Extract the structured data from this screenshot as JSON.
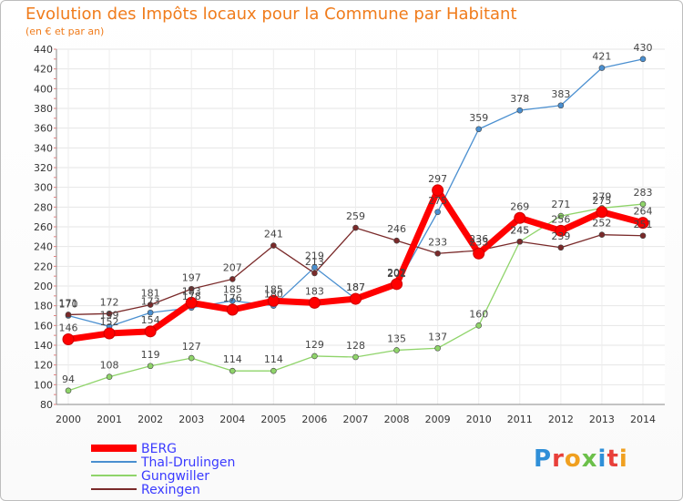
{
  "chart_data": {
    "type": "line",
    "title": "Evolution des Impôts locaux pour la Commune par Habitant",
    "subtitle": "(en € et par an)",
    "x": [
      "2000",
      "2001",
      "2002",
      "2003",
      "2004",
      "2005",
      "2006",
      "2007",
      "2008",
      "2009",
      "2010",
      "2011",
      "2012",
      "2013",
      "2014"
    ],
    "ylim": [
      80,
      440
    ],
    "yticks": [
      80,
      100,
      120,
      140,
      160,
      180,
      200,
      220,
      240,
      260,
      280,
      300,
      320,
      340,
      360,
      380,
      400,
      420,
      440
    ],
    "grid": true,
    "legend_position": "bottom-left",
    "series": [
      {
        "name": "BERG",
        "color": "#ff0000",
        "values": [
          146,
          152,
          154,
          183,
          176,
          185,
          183,
          187,
          202,
          297,
          233,
          269,
          256,
          275,
          264
        ]
      },
      {
        "name": "Thal-Drulingen",
        "color": "#4a8fd0",
        "values": [
          170,
          159,
          173,
          178,
          185,
          180,
          219,
          187,
          201,
          275,
          359,
          378,
          383,
          421,
          430
        ]
      },
      {
        "name": "Gungwiller",
        "color": "#8fd46a",
        "values": [
          94,
          108,
          119,
          127,
          114,
          114,
          129,
          128,
          135,
          137,
          160,
          245,
          271,
          279,
          283
        ]
      },
      {
        "name": "Rexingen",
        "color": "#7a2a2a",
        "values": [
          171,
          172,
          181,
          197,
          207,
          241,
          213,
          259,
          246,
          233,
          236,
          245,
          239,
          252,
          251
        ]
      }
    ]
  },
  "legend": {
    "items": [
      {
        "label": "BERG",
        "color": "#ff0000",
        "text_color": "#3a3aff"
      },
      {
        "label": "Thal-Drulingen",
        "color": "#4a8fd0",
        "text_color": "#3a3aff"
      },
      {
        "label": "Gungwiller",
        "color": "#8fd46a",
        "text_color": "#3a3aff"
      },
      {
        "label": "Rexingen",
        "color": "#7a2a2a",
        "text_color": "#3a3aff"
      }
    ]
  },
  "logo": {
    "letters": [
      "P",
      "r",
      "o",
      "x",
      "i",
      "t",
      "i"
    ],
    "colors": [
      "#2f8fd8",
      "#e8403a",
      "#f0a020",
      "#6cc04a",
      "#2f8fd8",
      "#e8403a",
      "#f0a020"
    ]
  }
}
